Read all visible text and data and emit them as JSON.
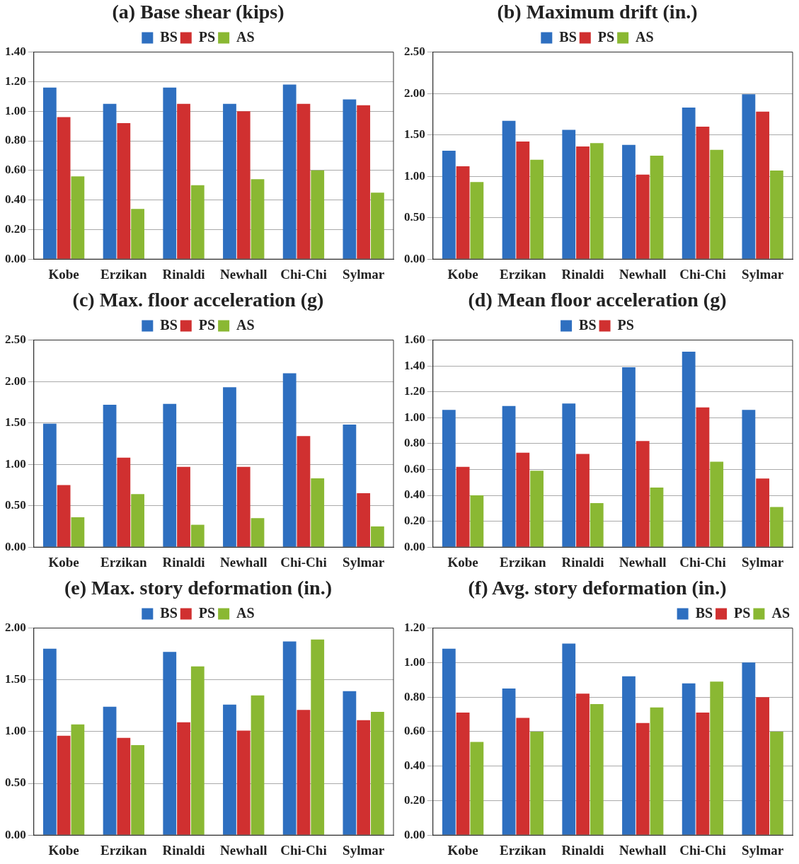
{
  "chart_data": [
    {
      "type": "bar",
      "title": "(a) Base shear (kips)",
      "categories": [
        "Kobe",
        "Erzikan",
        "Rinaldi",
        "Newhall",
        "Chi-Chi",
        "Sylmar"
      ],
      "series": [
        {
          "name": "BS",
          "color": "#2e6fc0",
          "values": [
            1.16,
            1.05,
            1.16,
            1.05,
            1.18,
            1.08
          ]
        },
        {
          "name": "PS",
          "color": "#d03030",
          "values": [
            0.96,
            0.92,
            1.05,
            1.0,
            1.05,
            1.04
          ]
        },
        {
          "name": "AS",
          "color": "#8ab833",
          "values": [
            0.56,
            0.34,
            0.5,
            0.54,
            0.6,
            0.45
          ]
        }
      ],
      "ylim": [
        0,
        1.4
      ],
      "yticks": [
        {
          "value": 0,
          "label": "0.00"
        },
        {
          "value": 0.2,
          "label": "0.20"
        },
        {
          "value": 0.4,
          "label": "0.40"
        },
        {
          "value": 0.6,
          "label": "0.60"
        },
        {
          "value": 0.8,
          "label": "0.80"
        },
        {
          "value": 1,
          "label": "1.00"
        },
        {
          "value": 1.2,
          "label": "1.20"
        },
        {
          "value": 1.4,
          "label": "1.40"
        }
      ],
      "grid": "y",
      "legend": "top"
    },
    {
      "type": "bar",
      "title": "(b) Maximum drift (in.)",
      "categories": [
        "Kobe",
        "Erzikan",
        "Rinaldi",
        "Newhall",
        "Chi-Chi",
        "Sylmar"
      ],
      "series": [
        {
          "name": "BS",
          "color": "#2e6fc0",
          "values": [
            1.31,
            1.67,
            1.56,
            1.38,
            1.83,
            1.99
          ]
        },
        {
          "name": "PS",
          "color": "#d03030",
          "values": [
            1.12,
            1.42,
            1.36,
            1.02,
            1.6,
            1.78
          ]
        },
        {
          "name": "AS",
          "color": "#8ab833",
          "values": [
            0.93,
            1.2,
            1.4,
            1.25,
            1.32,
            1.07
          ]
        }
      ],
      "ylim": [
        0,
        2.5
      ],
      "yticks": [
        {
          "value": 0,
          "label": "0.00"
        },
        {
          "value": 0.5,
          "label": "0.50"
        },
        {
          "value": 1,
          "label": "1.00"
        },
        {
          "value": 1.5,
          "label": "1.50"
        },
        {
          "value": 2,
          "label": "2.00"
        },
        {
          "value": 2.5,
          "label": "2.50"
        }
      ],
      "grid": "y",
      "legend": "top"
    },
    {
      "type": "bar",
      "title": "(c) Max. floor acceleration (g)",
      "categories": [
        "Kobe",
        "Erzikan",
        "Rinaldi",
        "Newhall",
        "Chi-Chi",
        "Sylmar"
      ],
      "series": [
        {
          "name": "BS",
          "color": "#2e6fc0",
          "values": [
            1.49,
            1.72,
            1.73,
            1.93,
            2.1,
            1.48
          ]
        },
        {
          "name": "PS",
          "color": "#d03030",
          "values": [
            0.75,
            1.08,
            0.97,
            0.97,
            1.34,
            0.65
          ]
        },
        {
          "name": "AS",
          "color": "#8ab833",
          "values": [
            0.36,
            0.64,
            0.27,
            0.35,
            0.83,
            0.25
          ]
        }
      ],
      "ylim": [
        0,
        2.5
      ],
      "yticks": [
        {
          "value": 0,
          "label": "0.00"
        },
        {
          "value": 0.5,
          "label": "0.50"
        },
        {
          "value": 1,
          "label": "1.00"
        },
        {
          "value": 1.5,
          "label": "1.50"
        },
        {
          "value": 2,
          "label": "2.00"
        },
        {
          "value": 2.5,
          "label": "2.50"
        }
      ],
      "grid": "y",
      "legend": "top"
    },
    {
      "type": "bar",
      "title": "(d) Mean floor acceleration (g)",
      "categories": [
        "Kobe",
        "Erzikan",
        "Rinaldi",
        "Newhall",
        "Chi-Chi",
        "Sylmar"
      ],
      "series": [
        {
          "name": "BS",
          "color": "#2e6fc0",
          "values": [
            1.06,
            1.09,
            1.11,
            1.39,
            1.51,
            1.06
          ]
        },
        {
          "name": "PS",
          "color": "#d03030",
          "values": [
            0.62,
            0.73,
            0.72,
            0.82,
            1.08,
            0.53
          ]
        },
        {
          "color": "#8ab833",
          "values": [
            0.4,
            0.59,
            0.34,
            0.46,
            0.66,
            0.31
          ]
        }
      ],
      "ylim": [
        0,
        1.6
      ],
      "yticks": [
        {
          "value": 0,
          "label": "0.00"
        },
        {
          "value": 0.2,
          "label": "0.20"
        },
        {
          "value": 0.4,
          "label": "0.40"
        },
        {
          "value": 0.6,
          "label": "0.60"
        },
        {
          "value": 0.8,
          "label": "0.80"
        },
        {
          "value": 1,
          "label": "1.00"
        },
        {
          "value": 1.2,
          "label": "1.20"
        },
        {
          "value": 1.4,
          "label": "1.40"
        },
        {
          "value": 1.6,
          "label": "1.60"
        }
      ],
      "grid": "y",
      "legend": "top"
    },
    {
      "type": "bar",
      "title": "(e) Max. story deformation (in.)",
      "categories": [
        "Kobe",
        "Erzikan",
        "Rinaldi",
        "Newhall",
        "Chi-Chi",
        "Sylmar"
      ],
      "series": [
        {
          "name": "BS",
          "color": "#2e6fc0",
          "values": [
            1.8,
            1.24,
            1.77,
            1.26,
            1.87,
            1.39
          ]
        },
        {
          "name": "PS",
          "color": "#d03030",
          "values": [
            0.96,
            0.94,
            1.09,
            1.01,
            1.21,
            1.11
          ]
        },
        {
          "name": "AS",
          "color": "#8ab833",
          "values": [
            1.07,
            0.87,
            1.63,
            1.35,
            1.89,
            1.19
          ]
        }
      ],
      "ylim": [
        0,
        2
      ],
      "yticks": [
        {
          "value": 0,
          "label": "0.00"
        },
        {
          "value": 0.5,
          "label": "0.50"
        },
        {
          "value": 1,
          "label": "1.00"
        },
        {
          "value": 1.5,
          "label": "1.50"
        },
        {
          "value": 2,
          "label": "2.00"
        }
      ],
      "grid": "y",
      "legend": "top"
    },
    {
      "type": "bar",
      "title": "(f) Avg. story deformation (in.)",
      "categories": [
        "Kobe",
        "Erzikan",
        "Rinaldi",
        "Newhall",
        "Chi-Chi",
        "Sylmar"
      ],
      "series": [
        {
          "name": "BS",
          "color": "#2e6fc0",
          "values": [
            1.08,
            0.85,
            1.11,
            0.92,
            0.88,
            1.0
          ]
        },
        {
          "name": "PS",
          "color": "#d03030",
          "values": [
            0.71,
            0.68,
            0.82,
            0.65,
            0.71,
            0.8
          ]
        },
        {
          "name": "AS",
          "color": "#8ab833",
          "values": [
            0.54,
            0.6,
            0.76,
            0.74,
            0.89,
            0.6
          ]
        }
      ],
      "ylim": [
        0,
        1.2
      ],
      "yticks": [
        {
          "value": 0,
          "label": "0.00"
        },
        {
          "value": 0.2,
          "label": "0.20"
        },
        {
          "value": 0.4,
          "label": "0.40"
        },
        {
          "value": 0.6,
          "label": "0.60"
        },
        {
          "value": 0.8,
          "label": "0.80"
        },
        {
          "value": 1,
          "label": "1.00"
        },
        {
          "value": 1.2,
          "label": "1.20"
        }
      ],
      "grid": "y",
      "legend": "top right"
    }
  ]
}
